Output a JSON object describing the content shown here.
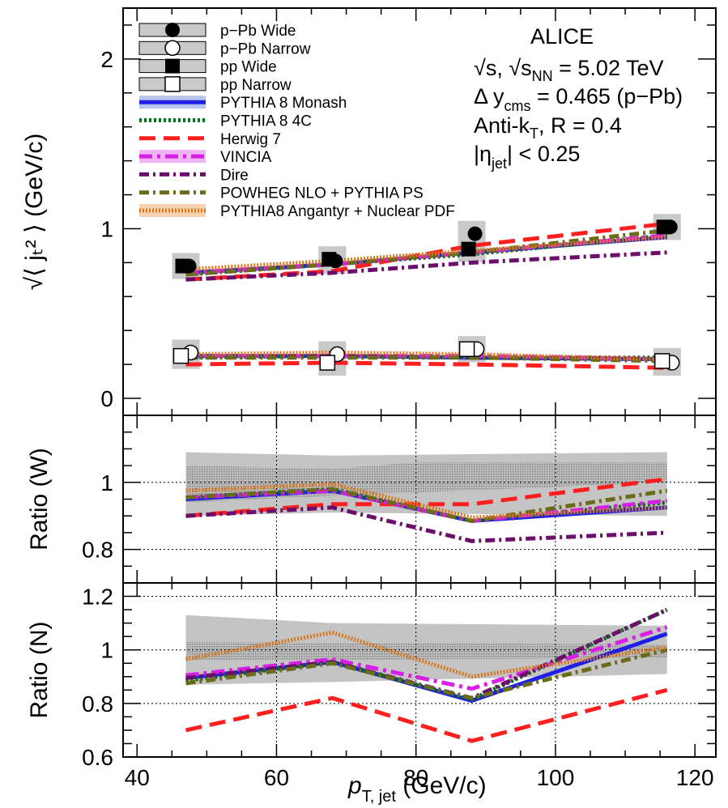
{
  "chart_data": {
    "type": "line",
    "x_axis": {
      "label_main": "p",
      "label_sub": "T, jet",
      "label_unit": "(GeV/c)",
      "range": [
        38,
        123
      ],
      "ticks": [
        40,
        60,
        80,
        100,
        120
      ]
    },
    "x_points": [
      47,
      68,
      88,
      116
    ],
    "legend": [
      {
        "name": "p−Pb Wide",
        "kind": "marker",
        "marker": "filled-circle"
      },
      {
        "name": "p−Pb Narrow",
        "kind": "marker",
        "marker": "open-circle"
      },
      {
        "name": "pp Wide",
        "kind": "marker",
        "marker": "filled-square"
      },
      {
        "name": "pp Narrow",
        "kind": "marker",
        "marker": "open-square"
      },
      {
        "name": "PYTHIA 8 Monash",
        "kind": "line",
        "color": "#1f1fe6",
        "dash": "",
        "width": 5,
        "band": "#b8c4f0"
      },
      {
        "name": "PYTHIA 8 4C",
        "kind": "line",
        "color": "#0b6b1f",
        "dash": "3,3",
        "width": 5,
        "band": ""
      },
      {
        "name": "Herwig 7",
        "kind": "line",
        "color": "#ff1f1f",
        "dash": "20,10",
        "width": 5,
        "band": ""
      },
      {
        "name": "VINCIA",
        "kind": "line",
        "color": "#d81fe6",
        "dash": "16,6,4,6",
        "width": 5,
        "band": "#f0b4f4"
      },
      {
        "name": "Dire",
        "kind": "line",
        "color": "#6b0f6b",
        "dash": "12,5,3,5",
        "width": 5,
        "band": ""
      },
      {
        "name": "POWHEG NLO + PYTHIA PS",
        "kind": "line",
        "color": "#6b6b1a",
        "dash": "12,5,3,5",
        "width": 5,
        "band": ""
      },
      {
        "name": "PYTHIA8 Angantyr + Nuclear PDF",
        "kind": "line",
        "color": "#d9771c",
        "dash": "2,2",
        "width": 5,
        "band": "#f6d2b0"
      }
    ],
    "annotation": {
      "experiment": "ALICE",
      "energy": "√s, √s",
      "energy_sub": "NN",
      "energy_value": " = 5.02 TeV",
      "rapidity_pre": "Δ y",
      "rapidity_sub": "cms",
      "rapidity_value": " = 0.465 (p−Pb)",
      "algo_pre": "Anti-k",
      "algo_sub": "T",
      "algo_value": ", R = 0.4",
      "eta_pre": "|η",
      "eta_sub": "jet",
      "eta_value": "| < 0.25"
    },
    "panels": [
      {
        "id": "main",
        "ylabel": "√⟨ jₜ² ⟩ (GeV/c)",
        "ylim": [
          -0.1,
          2.3
        ],
        "yticks": [
          0,
          1,
          2
        ],
        "data": {
          "pPb_wide": [
            0.78,
            0.81,
            0.97,
            1.01
          ],
          "pPb_narrow": [
            0.27,
            0.26,
            0.29,
            0.21
          ],
          "pp_wide": [
            0.78,
            0.82,
            0.88,
            1.01
          ],
          "pp_narrow": [
            0.25,
            0.21,
            0.29,
            0.22
          ]
        },
        "models_wide": {
          "PYTHIA 8 Monash": [
            0.74,
            0.79,
            0.86,
            0.95
          ],
          "PYTHIA 8 4C": [
            0.73,
            0.79,
            0.85,
            0.96
          ],
          "Herwig 7": [
            0.7,
            0.75,
            0.9,
            1.03
          ],
          "VINCIA": [
            0.74,
            0.79,
            0.86,
            0.96
          ],
          "Dire": [
            0.7,
            0.74,
            0.8,
            0.86
          ],
          "POWHEG NLO + PYTHIA PS": [
            0.73,
            0.79,
            0.86,
            0.99
          ],
          "PYTHIA8 Angantyr + Nuclear PDF": [
            0.76,
            0.81,
            0.87,
            0.95
          ]
        },
        "models_narrow": {
          "PYTHIA 8 Monash": [
            0.25,
            0.25,
            0.24,
            0.23
          ],
          "PYTHIA 8 4C": [
            0.24,
            0.25,
            0.24,
            0.24
          ],
          "Herwig 7": [
            0.2,
            0.21,
            0.2,
            0.18
          ],
          "VINCIA": [
            0.25,
            0.25,
            0.25,
            0.23
          ],
          "Dire": [
            0.24,
            0.25,
            0.24,
            0.23
          ],
          "POWHEG NLO + PYTHIA PS": [
            0.24,
            0.24,
            0.24,
            0.22
          ],
          "PYTHIA8 Angantyr + Nuclear PDF": [
            0.26,
            0.27,
            0.26,
            0.23
          ]
        }
      },
      {
        "id": "ratio-w",
        "ylabel": "Ratio (W)",
        "ylim": [
          0.7,
          1.2
        ],
        "yticks": [
          0.8,
          1
        ],
        "band_sys": {
          "x": [
            47,
            68,
            116
          ],
          "lo": [
            0.9,
            0.91,
            0.9
          ],
          "hi": [
            1.09,
            1.08,
            1.09
          ]
        },
        "band_stat": {
          "x": [
            47,
            68,
            80,
            116
          ],
          "lo": [
            0.94,
            0.96,
            0.97,
            1.0
          ],
          "hi": [
            1.05,
            1.04,
            1.06,
            1.06
          ]
        },
        "models": {
          "PYTHIA 8 Monash": [
            0.95,
            0.975,
            0.885,
            0.925
          ],
          "PYTHIA 8 4C": [
            0.955,
            0.98,
            0.885,
            0.94
          ],
          "Herwig 7": [
            0.9,
            0.935,
            0.935,
            1.01
          ],
          "VINCIA": [
            0.955,
            0.975,
            0.885,
            0.945
          ],
          "Dire": [
            0.9,
            0.925,
            0.825,
            0.85
          ],
          "POWHEG NLO + PYTHIA PS": [
            0.955,
            0.98,
            0.885,
            0.975
          ],
          "PYTHIA8 Angantyr + Nuclear PDF": [
            0.975,
            0.995,
            0.895,
            0.925
          ]
        }
      },
      {
        "id": "ratio-n",
        "ylabel": "Ratio (N)",
        "ylim": [
          0.6,
          1.25
        ],
        "yticks": [
          0.6,
          0.8,
          1,
          1.2
        ],
        "band_sys": {
          "x": [
            47,
            68,
            116
          ],
          "lo": [
            0.87,
            0.88,
            0.91
          ],
          "hi": [
            1.13,
            1.1,
            1.09
          ]
        },
        "band_stat": {
          "x": [
            47,
            116
          ],
          "lo": [
            0.96,
            0.97
          ],
          "hi": [
            1.03,
            1.02
          ]
        },
        "models": {
          "PYTHIA 8 Monash": [
            0.895,
            0.955,
            0.81,
            1.06
          ],
          "PYTHIA 8 4C": [
            0.885,
            0.955,
            0.815,
            1.15
          ],
          "Herwig 7": [
            0.7,
            0.82,
            0.66,
            0.85
          ],
          "VINCIA": [
            0.905,
            0.965,
            0.855,
            1.085
          ],
          "Dire": [
            0.895,
            0.955,
            0.82,
            1.15
          ],
          "POWHEG NLO + PYTHIA PS": [
            0.875,
            0.95,
            0.82,
            1.0
          ],
          "PYTHIA8 Angantyr + Nuclear PDF": [
            0.965,
            1.065,
            0.9,
            1.01
          ]
        }
      }
    ]
  }
}
